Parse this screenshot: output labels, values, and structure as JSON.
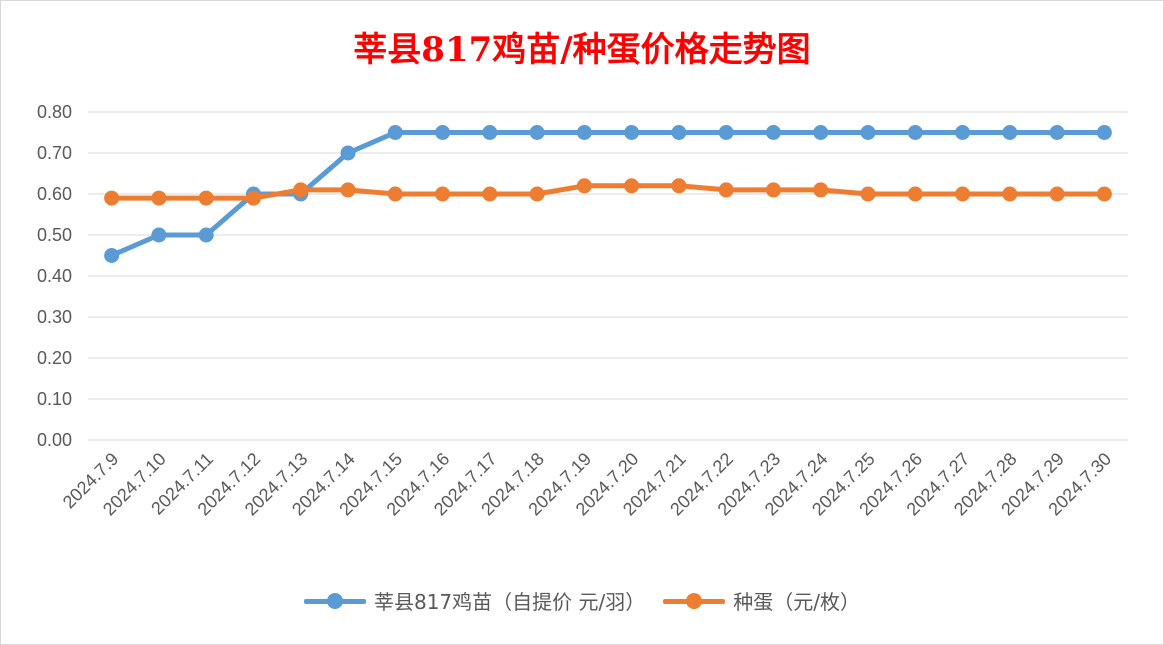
{
  "chart_data": {
    "type": "line",
    "title": "莘县817鸡苗/种蛋价格走势图",
    "categories": [
      "2024.7.9",
      "2024.7.10",
      "2024.7.11",
      "2024.7.12",
      "2024.7.13",
      "2024.7.14",
      "2024.7.15",
      "2024.7.16",
      "2024.7.17",
      "2024.7.18",
      "2024.7.19",
      "2024.7.20",
      "2024.7.21",
      "2024.7.22",
      "2024.7.23",
      "2024.7.24",
      "2024.7.25",
      "2024.7.26",
      "2024.7.27",
      "2024.7.28",
      "2024.7.29",
      "2024.7.30"
    ],
    "series": [
      {
        "name": "莘县817鸡苗（自提价 元/羽）",
        "color": "#5b9bd5",
        "values": [
          0.45,
          0.5,
          0.5,
          0.6,
          0.6,
          0.7,
          0.75,
          0.75,
          0.75,
          0.75,
          0.75,
          0.75,
          0.75,
          0.75,
          0.75,
          0.75,
          0.75,
          0.75,
          0.75,
          0.75,
          0.75,
          0.75
        ]
      },
      {
        "name": "种蛋（元/枚）",
        "color": "#ed7d31",
        "values": [
          0.59,
          0.59,
          0.59,
          0.59,
          0.61,
          0.61,
          0.6,
          0.6,
          0.6,
          0.6,
          0.62,
          0.62,
          0.62,
          0.61,
          0.61,
          0.61,
          0.6,
          0.6,
          0.6,
          0.6,
          0.6,
          0.6
        ]
      }
    ],
    "y_ticks": [
      "0.00",
      "0.10",
      "0.20",
      "0.30",
      "0.40",
      "0.50",
      "0.60",
      "0.70",
      "0.80"
    ],
    "ylim": [
      0,
      0.8
    ],
    "grid": true,
    "legend_position": "bottom"
  }
}
